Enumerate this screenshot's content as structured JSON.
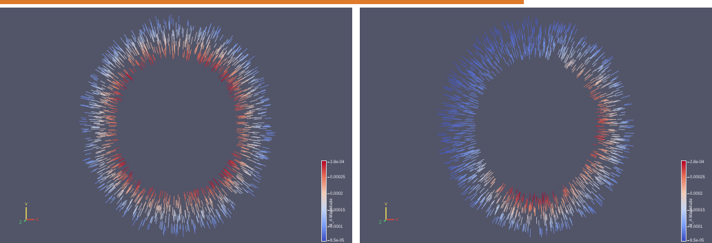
{
  "colorbar": {
    "title": "B_A Magnitude",
    "max_label": "2.8e-04",
    "min_label": "6.5e-05",
    "ticks": [
      "2.8e-04",
      "0.00025",
      "0.0002",
      "0.00015",
      "0.0001",
      "6.5e-05"
    ],
    "gradient": [
      "#b40426",
      "#e7745b",
      "#f2cbb7",
      "#c3d5f4",
      "#7b9ff9",
      "#3b4cc0"
    ]
  },
  "axes_triad": {
    "y_label": "Y",
    "z_label": "Z",
    "x_label": "X"
  },
  "colors": {
    "view_background": "#525468",
    "header_accent": "#e07a2b"
  },
  "views": [
    {
      "name": "left-view",
      "hot_regions": [
        "top",
        "left",
        "right",
        "bottom"
      ]
    },
    {
      "name": "right-view",
      "hot_regions": [
        "right",
        "bottom"
      ]
    }
  ]
}
